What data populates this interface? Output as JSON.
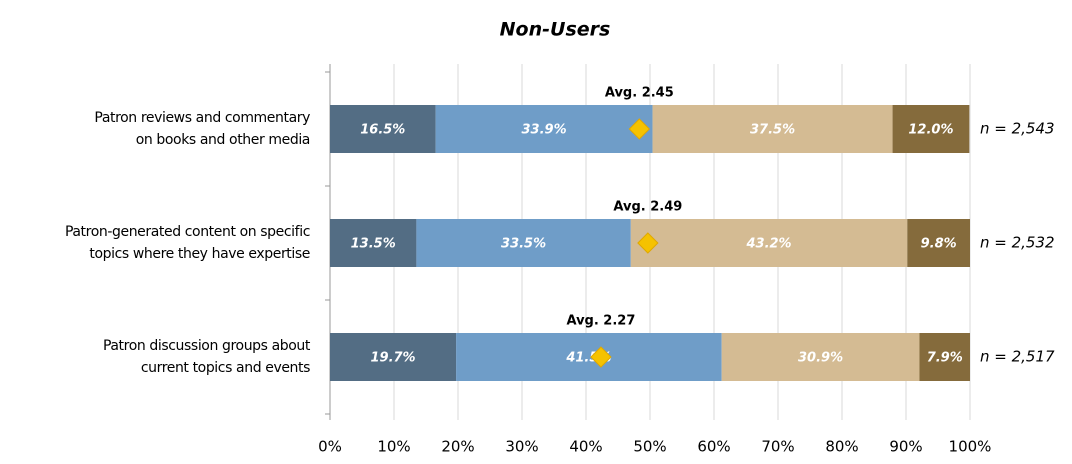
{
  "chart_data": {
    "type": "stacked-bar",
    "orientation": "horizontal",
    "title": "Non-Users",
    "categories": [
      [
        "Patron reviews and commentary",
        "on books and other media"
      ],
      [
        "Patron-generated content on specific",
        "topics where they have expertise"
      ],
      [
        "Patron discussion groups about",
        "current topics and events"
      ]
    ],
    "series": [
      {
        "color": "#536d84",
        "values": [
          16.5,
          13.5,
          19.7
        ],
        "value_labels": [
          "16.5%",
          "13.5%",
          "19.7%"
        ]
      },
      {
        "color": "#6f9dc8",
        "values": [
          33.9,
          33.5,
          41.5
        ],
        "value_labels": [
          "33.9%",
          "33.5%",
          "41.5%"
        ]
      },
      {
        "color": "#d4bb93",
        "values": [
          37.5,
          43.2,
          30.9
        ],
        "value_labels": [
          "37.5%",
          "43.2%",
          "30.9%"
        ]
      },
      {
        "color": "#856b3c",
        "values": [
          12.0,
          9.8,
          7.9
        ],
        "value_labels": [
          "12.0%",
          "9.8%",
          "7.9%"
        ]
      }
    ],
    "averages": [
      2.45,
      2.49,
      2.27
    ],
    "average_labels": [
      "Avg. 2.45",
      "Avg. 2.49",
      "Avg. 2.27"
    ],
    "average_lim": [
      1,
      4
    ],
    "average_color": "#f5c200",
    "n_labels": [
      "n = 2,543",
      "n = 2,532",
      "n = 2,517"
    ],
    "xlim": [
      0,
      100
    ],
    "xticks": [
      {
        "value": 0,
        "label": "0%"
      },
      {
        "value": 10,
        "label": "10%"
      },
      {
        "value": 20,
        "label": "20%"
      },
      {
        "value": 30,
        "label": "30%"
      },
      {
        "value": 40,
        "label": "40%"
      },
      {
        "value": 50,
        "label": "50%"
      },
      {
        "value": 60,
        "label": "60%"
      },
      {
        "value": 70,
        "label": "70%"
      },
      {
        "value": 80,
        "label": "80%"
      },
      {
        "value": 90,
        "label": "90%"
      },
      {
        "value": 100,
        "label": "100%"
      }
    ],
    "grid": true
  }
}
